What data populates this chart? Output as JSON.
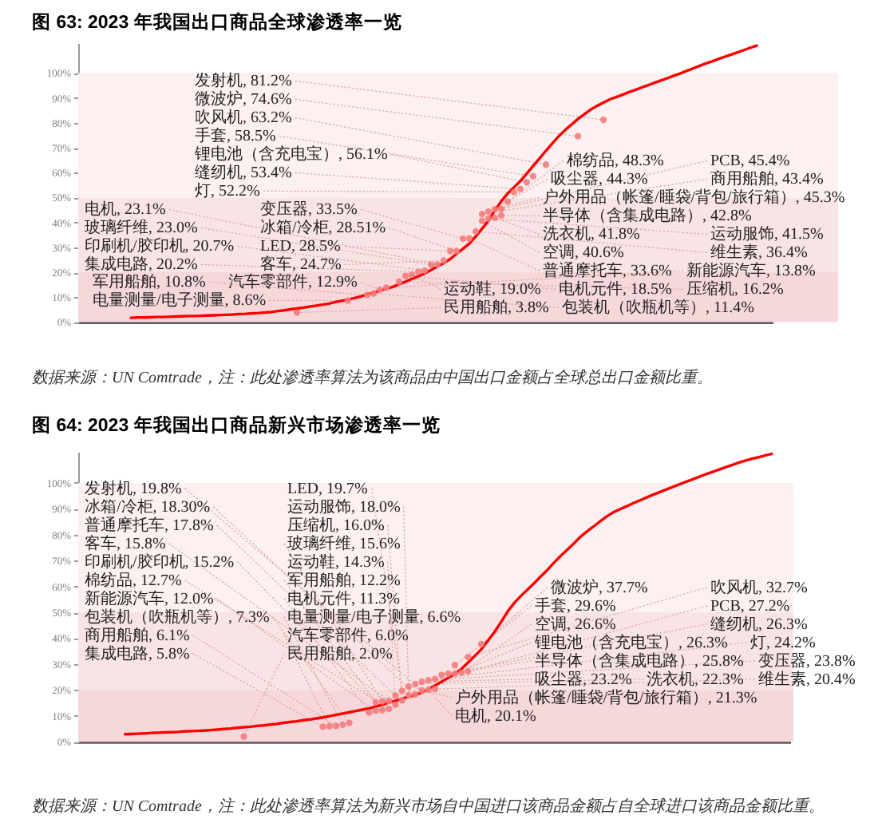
{
  "chart_data": [
    {
      "type": "scatter",
      "title": "图 63: 2023 年我国出口商品全球渗透率一览",
      "categories": [
        null,
        null,
        null,
        null,
        null,
        null,
        null,
        null,
        null,
        null,
        null,
        null,
        null,
        null,
        null,
        null,
        null,
        null,
        null,
        null,
        null,
        null,
        null,
        null,
        null,
        null,
        null,
        null,
        null,
        null,
        null,
        null,
        null,
        null,
        null,
        null,
        null,
        null,
        null,
        null,
        null,
        null,
        null,
        null,
        null,
        null,
        null,
        null,
        null,
        null,
        null,
        null,
        null,
        null,
        null,
        null,
        null,
        null,
        null,
        null,
        null,
        null,
        null,
        null,
        null,
        null,
        null,
        null,
        null,
        null,
        null,
        null,
        null,
        null,
        null,
        null,
        null,
        null,
        null,
        null,
        null,
        null,
        null,
        null,
        null,
        null,
        null,
        null,
        null,
        null,
        null,
        null,
        null,
        null,
        null,
        null,
        null,
        null,
        null
      ],
      "series": [
        {
          "type": "line",
          "color": "#ff0000",
          "values": [
            1.7,
            1.8,
            1.8,
            1.9,
            2.0,
            2.0,
            2.1,
            2.2,
            2.3,
            2.4,
            2.4,
            2.5,
            2.6,
            2.7,
            2.8,
            2.9,
            3.0,
            3.2,
            3.3,
            3.5,
            3.6,
            3.8,
            4.0,
            4.4,
            4.7,
            5.1,
            5.4,
            5.8,
            6.2,
            6.6,
            7.0,
            7.4,
            8.0,
            8.5,
            9.0,
            9.6,
            10.3,
            11.1,
            11.8,
            12.6,
            13.3,
            14.1,
            15.2,
            16.2,
            17.3,
            18.4,
            19.5,
            20.9,
            22.3,
            23.7,
            25.3,
            27.4,
            29.4,
            31.5,
            34.4,
            37.5,
            40.7,
            44.8,
            48.5,
            51.6,
            54.1,
            56.6,
            59.6,
            62.7,
            65.7,
            68.8,
            71.7,
            74.6,
            77.1,
            79.3,
            81.5,
            83.4,
            85.3,
            86.8,
            88.1,
            89.4,
            90.3,
            91.3,
            92.3,
            93.2,
            94.2,
            95.1,
            96.1,
            97.0,
            97.9,
            98.9,
            99.8,
            100.8,
            101.8,
            102.8,
            103.8,
            104.7,
            105.6,
            106.5,
            107.4,
            108.3,
            109.2,
            110.1,
            111.0
          ]
        },
        {
          "color": "#f47c7c",
          "marker": "circle",
          "values": [
            null,
            null,
            null,
            null,
            null,
            null,
            null,
            null,
            null,
            null,
            null,
            null,
            null,
            null,
            null,
            null,
            null,
            null,
            null,
            null,
            null,
            null,
            null,
            null,
            null,
            null,
            3.8,
            null,
            null,
            null,
            null,
            null,
            null,
            null,
            8.6,
            null,
            null,
            10.8,
            11.4,
            12.9,
            13.8,
            null,
            16.2,
            18.5,
            19.0,
            20.2,
            20.7,
            23.0,
            23.1,
            24.7,
            28.5,
            28.51,
            33.5,
            33.6,
            36.4,
            40.6,
            41.5,
            41.8,
            42.8,
            48.3,
            52.2,
            53.4,
            56.1,
            58.5,
            null,
            63.2,
            null,
            null,
            null,
            null,
            74.6,
            null,
            null,
            null,
            81.2,
            null,
            null,
            null,
            null,
            null,
            null,
            null,
            null,
            null,
            null,
            null,
            null,
            null,
            null,
            null,
            null,
            null,
            null,
            null,
            null,
            null,
            null,
            null,
            null
          ],
          "value_labels": [
            null,
            null,
            null,
            null,
            null,
            null,
            null,
            null,
            null,
            null,
            null,
            null,
            null,
            null,
            null,
            null,
            null,
            null,
            null,
            null,
            null,
            null,
            null,
            null,
            null,
            null,
            "民用船舶, 3.8%",
            null,
            null,
            null,
            null,
            null,
            null,
            null,
            "电量测量/电子测量, 8.6%",
            null,
            null,
            "军用船舶, 10.8%",
            "包装机（吹瓶机等）, 11.4%",
            "汽车零部件, 12.9%",
            "新能源汽车, 13.8%",
            null,
            "压缩机, 16.2%",
            "电机元件, 18.5%",
            "运动鞋, 19.0%",
            "集成电路, 20.2%",
            "印刷机/胶印机, 20.7%",
            "玻璃纤维, 23.0%",
            "电机, 23.1%",
            "客车, 24.7%",
            "LED, 28.5%",
            "冰箱/冷柜, 28.51%",
            "变压器, 33.5%",
            "普通摩托车, 33.6%",
            "维生素, 36.4%",
            "空调, 40.6%",
            "运动服饰, 41.5%",
            "洗衣机, 41.8%",
            "半导体（含集成电路）, 42.8%",
            "棉纺品, 48.3%",
            "灯, 52.2%",
            "缝纫机, 53.4%",
            "锂电池（含充电宝）, 56.1%",
            "手套, 58.5%",
            null,
            "吹风机, 63.2%",
            null,
            null,
            null,
            null,
            "微波炉, 74.6%",
            null,
            null,
            null,
            "发射机, 81.2%",
            null,
            null,
            null,
            null,
            null,
            null,
            null,
            null,
            null,
            null,
            null,
            null,
            null,
            null,
            null,
            null,
            null,
            null,
            null,
            null,
            null,
            null,
            null,
            null
          ]
        },
        {
          "color": "#f47c7c",
          "marker": "circle",
          "values": [
            null,
            null,
            null,
            null,
            null,
            null,
            null,
            null,
            null,
            null,
            null,
            null,
            null,
            null,
            null,
            null,
            null,
            null,
            null,
            null,
            null,
            null,
            null,
            null,
            null,
            null,
            null,
            null,
            null,
            null,
            null,
            null,
            null,
            null,
            null,
            null,
            null,
            null,
            null,
            null,
            null,
            null,
            null,
            null,
            null,
            null,
            null,
            null,
            null,
            null,
            null,
            null,
            null,
            null,
            null,
            43.4,
            44.3,
            45.3,
            45.4,
            null,
            null,
            null,
            null,
            null,
            null,
            null,
            null,
            null,
            null,
            null,
            null,
            null,
            null,
            null,
            null,
            null,
            null,
            null,
            null,
            null,
            null,
            null,
            null,
            null,
            null,
            null,
            null,
            null,
            null,
            null,
            null,
            null,
            null,
            null,
            null,
            null,
            null,
            null,
            null
          ],
          "value_labels": [
            null,
            null,
            null,
            null,
            null,
            null,
            null,
            null,
            null,
            null,
            null,
            null,
            null,
            null,
            null,
            null,
            null,
            null,
            null,
            null,
            null,
            null,
            null,
            null,
            null,
            null,
            null,
            null,
            null,
            null,
            null,
            null,
            null,
            null,
            null,
            null,
            null,
            null,
            null,
            null,
            null,
            null,
            null,
            null,
            null,
            null,
            null,
            null,
            null,
            null,
            null,
            null,
            null,
            null,
            null,
            "商用船舶, 43.4%",
            "吸尘器, 44.3%",
            "户外用品（帐篷/睡袋/背包/旅行箱）, 45.3%",
            "PCB, 45.4%",
            null,
            null,
            null,
            null,
            null,
            null,
            null,
            null,
            null,
            null,
            null,
            null,
            null,
            null,
            null,
            null,
            null,
            null,
            null,
            null,
            null,
            null,
            null,
            null,
            null,
            null,
            null,
            null,
            null,
            null,
            null,
            null,
            null,
            null,
            null,
            null,
            null,
            null,
            null,
            null
          ]
        }
      ],
      "ylim": [
        0,
        112
      ],
      "yticks": [
        {
          "value": 0,
          "label": "0%"
        },
        {
          "value": 10,
          "label": "10%"
        },
        {
          "value": 20,
          "label": "20%"
        },
        {
          "value": 30,
          "label": "30%"
        },
        {
          "value": 40,
          "label": "40%"
        },
        {
          "value": 50,
          "label": "50%"
        },
        {
          "value": 60,
          "label": "60%"
        },
        {
          "value": 70,
          "label": "70%"
        },
        {
          "value": 80,
          "label": "80%"
        },
        {
          "value": 90,
          "label": "90%"
        },
        {
          "value": 100,
          "label": "100%"
        }
      ],
      "bands": [
        {
          "axis": "y",
          "from": 0,
          "to": 20,
          "color": "#f6d8db"
        },
        {
          "axis": "y",
          "from": 20,
          "to": 50,
          "color": "#f9e4e5"
        },
        {
          "axis": "y",
          "from": 50,
          "to": 100,
          "color": "#fcf0f0"
        }
      ],
      "annotations": [
        "数据来源：UN Comtrade，注：此处渗透率算法为该商品由中国出口金额占全球总出口金额比重。"
      ]
    },
    {
      "type": "scatter",
      "title": "图 64: 2023 年我国出口商品新兴市场渗透率一览",
      "categories": [
        null,
        null,
        null,
        null,
        null,
        null,
        null,
        null,
        null,
        null,
        null,
        null,
        null,
        null,
        null,
        null,
        null,
        null,
        null,
        null,
        null,
        null,
        null,
        null,
        null,
        null,
        null,
        null,
        null,
        null,
        null,
        null,
        null,
        null,
        null,
        null,
        null,
        null,
        null,
        null,
        null,
        null,
        null,
        null,
        null,
        null,
        null,
        null,
        null,
        null,
        null,
        null,
        null,
        null,
        null,
        null,
        null,
        null,
        null,
        null,
        null,
        null,
        null,
        null,
        null,
        null,
        null,
        null,
        null,
        null,
        null,
        null,
        null,
        null,
        null,
        null,
        null,
        null,
        null,
        null,
        null,
        null,
        null,
        null,
        null,
        null,
        null,
        null,
        null,
        null,
        null,
        null,
        null,
        null,
        null,
        null,
        null,
        null,
        null
      ],
      "series": [
        {
          "type": "line",
          "color": "#ff0000",
          "values": [
            2.9,
            3.0,
            3.1,
            3.2,
            3.4,
            3.5,
            3.6,
            3.7,
            3.8,
            4.0,
            4.1,
            4.2,
            4.3,
            4.5,
            4.7,
            4.9,
            5.1,
            5.4,
            5.6,
            5.8,
            6.1,
            6.3,
            6.6,
            6.9,
            7.3,
            7.6,
            7.9,
            8.3,
            8.6,
            9.0,
            9.4,
            9.9,
            10.4,
            10.9,
            11.4,
            11.9,
            12.4,
            12.9,
            13.6,
            14.3,
            15.1,
            15.8,
            16.6,
            17.4,
            18.1,
            19.0,
            20.4,
            21.7,
            23.2,
            24.7,
            26.3,
            28.1,
            30.6,
            33.1,
            35.7,
            39.0,
            42.4,
            46.2,
            50.3,
            53.6,
            56.3,
            58.7,
            61.2,
            63.8,
            66.3,
            69.1,
            71.7,
            74.1,
            76.5,
            79.1,
            81.2,
            83.1,
            85.1,
            87.0,
            88.6,
            89.8,
            90.9,
            92.1,
            93.2,
            94.3,
            95.4,
            96.4,
            97.4,
            98.4,
            99.4,
            100.4,
            101.3,
            102.3,
            103.3,
            104.2,
            105.1,
            106.0,
            106.9,
            107.8,
            108.6,
            109.3,
            109.9,
            110.6,
            111.2
          ]
        },
        {
          "color": "#f47c7c",
          "marker": "circle",
          "values": [
            null,
            null,
            null,
            null,
            null,
            null,
            null,
            null,
            null,
            null,
            null,
            null,
            null,
            null,
            null,
            null,
            null,
            null,
            2.0,
            null,
            null,
            null,
            null,
            null,
            null,
            null,
            null,
            null,
            null,
            null,
            5.8,
            6.0,
            6.1,
            6.6,
            7.3,
            null,
            null,
            11.3,
            12.0,
            12.2,
            12.7,
            14.3,
            16.0,
            18.0,
            18.3,
            19.8,
            20.1,
            20.4,
            25.8,
            26.3,
            26.3,
            26.6,
            27.2,
            null,
            37.7,
            null,
            null,
            null,
            null,
            null,
            null,
            null,
            null,
            null,
            null,
            null,
            null,
            null,
            null,
            null,
            null,
            null,
            null,
            null,
            null,
            null,
            null,
            null,
            null,
            null,
            null,
            null,
            null,
            null,
            null,
            null,
            null,
            null,
            null,
            null,
            null,
            null,
            null,
            null,
            null,
            null,
            null,
            null,
            null
          ],
          "value_labels": [
            null,
            null,
            null,
            null,
            null,
            null,
            null,
            null,
            null,
            null,
            null,
            null,
            null,
            null,
            null,
            null,
            null,
            null,
            "民用船舶, 2.0%",
            null,
            null,
            null,
            null,
            null,
            null,
            null,
            null,
            null,
            null,
            null,
            "集成电路, 5.8%",
            "汽车零部件, 6.0%",
            "商用船舶, 6.1%",
            "电量测量/电子测量, 6.6%",
            "包装机（吹瓶机等）, 7.3%",
            null,
            null,
            "电机元件, 11.3%",
            "新能源汽车, 12.0%",
            "军用船舶, 12.2%",
            "棉纺品, 12.7%",
            "运动鞋, 14.3%",
            "压缩机, 16.0%",
            "运动服饰, 18.0%",
            "冰箱/冷柜, 18.30%",
            "发射机, 19.8%",
            "电机, 20.1%",
            "维生素, 20.4%",
            "半导体（含集成电路）, 25.8%",
            "缝纫机, 26.3%",
            "锂电池（含充电宝）, 26.3%",
            "空调, 26.6%",
            "PCB, 27.2%",
            null,
            "微波炉, 37.7%",
            null,
            null,
            null,
            null,
            null,
            null,
            null,
            null,
            null,
            null,
            null,
            null,
            null,
            null,
            null,
            null,
            null,
            null,
            null,
            null,
            null,
            null,
            null,
            null,
            null,
            null,
            null,
            null,
            null,
            null,
            null,
            null,
            null,
            null,
            null,
            null,
            null,
            null,
            null,
            null,
            null,
            null,
            null,
            null
          ]
        },
        {
          "color": "#f47c7c",
          "marker": "circle",
          "values": [
            null,
            null,
            null,
            null,
            null,
            null,
            null,
            null,
            null,
            null,
            null,
            null,
            null,
            null,
            null,
            null,
            null,
            null,
            null,
            null,
            null,
            null,
            null,
            null,
            null,
            null,
            null,
            null,
            null,
            null,
            null,
            null,
            null,
            null,
            null,
            null,
            null,
            null,
            15.2,
            15.6,
            15.8,
            17.8,
            19.7,
            21.3,
            22.3,
            23.2,
            23.8,
            24.2,
            null,
            null,
            29.6,
            null,
            32.7,
            null,
            null,
            null,
            null,
            null,
            null,
            null,
            null,
            null,
            null,
            null,
            null,
            null,
            null,
            null,
            null,
            null,
            null,
            null,
            null,
            null,
            null,
            null,
            null,
            null,
            null,
            null,
            null,
            null,
            null,
            null,
            null,
            null,
            null,
            null,
            null,
            null,
            null,
            null,
            null,
            null,
            null,
            null,
            null,
            null,
            null
          ],
          "value_labels": [
            null,
            null,
            null,
            null,
            null,
            null,
            null,
            null,
            null,
            null,
            null,
            null,
            null,
            null,
            null,
            null,
            null,
            null,
            null,
            null,
            null,
            null,
            null,
            null,
            null,
            null,
            null,
            null,
            null,
            null,
            null,
            null,
            null,
            null,
            null,
            null,
            null,
            null,
            "印刷机/胶印机, 15.2%",
            "玻璃纤维, 15.6%",
            "客车, 15.8%",
            "普通摩托车, 17.8%",
            "LED, 19.7%",
            "户外用品（帐篷/睡袋/背包/旅行箱）, 21.3%",
            "洗衣机, 22.3%",
            "吸尘器, 23.2%",
            "变压器, 23.8%",
            "灯, 24.2%",
            null,
            null,
            "手套, 29.6%",
            null,
            "吹风机, 32.7%",
            null,
            null,
            null,
            null,
            null,
            null,
            null,
            null,
            null,
            null,
            null,
            null,
            null,
            null,
            null,
            null,
            null,
            null,
            null,
            null,
            null,
            null,
            null,
            null,
            null,
            null,
            null,
            null,
            null,
            null,
            null,
            null,
            null,
            null,
            null,
            null,
            null,
            null,
            null,
            null,
            null,
            null,
            null,
            null,
            null,
            null
          ]
        }
      ],
      "ylim": [
        0,
        112
      ],
      "yticks": [
        {
          "value": 0,
          "label": "0%"
        },
        {
          "value": 10,
          "label": "10%"
        },
        {
          "value": 20,
          "label": "20%"
        },
        {
          "value": 30,
          "label": "30%"
        },
        {
          "value": 40,
          "label": "40%"
        },
        {
          "value": 50,
          "label": "50%"
        },
        {
          "value": 60,
          "label": "60%"
        },
        {
          "value": 70,
          "label": "70%"
        },
        {
          "value": 80,
          "label": "80%"
        },
        {
          "value": 90,
          "label": "90%"
        },
        {
          "value": 100,
          "label": "100%"
        }
      ],
      "bands": [
        {
          "axis": "y",
          "from": 0,
          "to": 20,
          "color": "#f6d8db"
        },
        {
          "axis": "y",
          "from": 20,
          "to": 50,
          "color": "#f9e4e5"
        },
        {
          "axis": "y",
          "from": 50,
          "to": 100,
          "color": "#fcf0f0"
        }
      ],
      "annotations": [
        "数据来源：UN Comtrade，注：此处渗透率算法为新兴市场自中国进口该商品金额占自全球进口该商品金额比重。"
      ]
    }
  ]
}
